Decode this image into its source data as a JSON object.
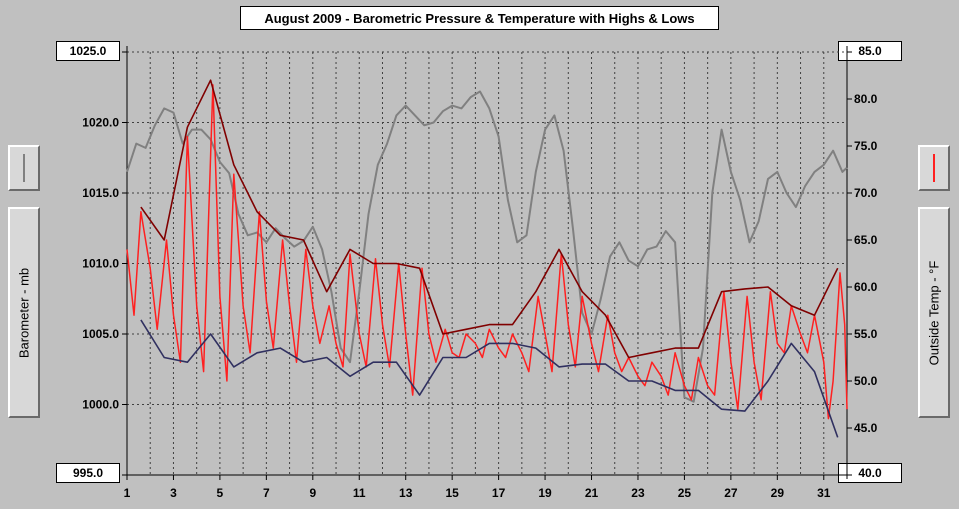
{
  "chart_data": {
    "type": "line",
    "title": "August 2009 - Barometric Pressure & Temperature with Highs & Lows",
    "x": {
      "label": "",
      "range": [
        1,
        32
      ],
      "ticks": [
        "1",
        "3",
        "5",
        "7",
        "9",
        "11",
        "13",
        "15",
        "17",
        "19",
        "21",
        "23",
        "25",
        "27",
        "29",
        "31"
      ]
    },
    "y_left": {
      "label": "Barometer - mb",
      "range": [
        995.0,
        1025.0
      ],
      "ticks": [
        "995.0",
        "1000.0",
        "1005.0",
        "1010.0",
        "1015.0",
        "1020.0",
        "1025.0"
      ]
    },
    "y_right": {
      "label": "Outside Temp - °F",
      "range": [
        40.0,
        85.0
      ],
      "ticks": [
        "40.0",
        "45.0",
        "50.0",
        "55.0",
        "60.0",
        "65.0",
        "70.0",
        "75.0",
        "80.0",
        "85.0"
      ]
    },
    "grid": true,
    "colors": {
      "background": "#c0c0c0",
      "grid": "#404040",
      "barometer": "#808080",
      "temperature": "#ff2020",
      "highs": "#800000",
      "lows": "#303060"
    },
    "series": [
      {
        "key": "barometer",
        "axis": "left",
        "points": [
          [
            1,
            1016.5
          ],
          [
            1.4,
            1018.5
          ],
          [
            1.8,
            1018.2
          ],
          [
            2.2,
            1019.8
          ],
          [
            2.6,
            1021.0
          ],
          [
            3.0,
            1020.7
          ],
          [
            3.4,
            1018.5
          ],
          [
            3.8,
            1019.5
          ],
          [
            4.2,
            1019.5
          ],
          [
            4.6,
            1018.8
          ],
          [
            5.0,
            1017.2
          ],
          [
            5.4,
            1016.4
          ],
          [
            5.8,
            1013.5
          ],
          [
            6.2,
            1012.0
          ],
          [
            6.6,
            1012.2
          ],
          [
            7.0,
            1011.5
          ],
          [
            7.4,
            1012.5
          ],
          [
            7.8,
            1011.8
          ],
          [
            8.2,
            1011.2
          ],
          [
            8.6,
            1011.6
          ],
          [
            9.0,
            1012.6
          ],
          [
            9.4,
            1011.0
          ],
          [
            9.8,
            1008.0
          ],
          [
            10.2,
            1004.0
          ],
          [
            10.6,
            1003.0
          ],
          [
            11.0,
            1008.0
          ],
          [
            11.4,
            1013.5
          ],
          [
            11.8,
            1017.0
          ],
          [
            12.2,
            1018.5
          ],
          [
            12.6,
            1020.5
          ],
          [
            13.0,
            1021.2
          ],
          [
            13.4,
            1020.5
          ],
          [
            13.8,
            1019.8
          ],
          [
            14.2,
            1020.0
          ],
          [
            14.6,
            1020.8
          ],
          [
            15.0,
            1021.2
          ],
          [
            15.4,
            1021.0
          ],
          [
            15.8,
            1021.8
          ],
          [
            16.2,
            1022.2
          ],
          [
            16.6,
            1021.0
          ],
          [
            17.0,
            1019.0
          ],
          [
            17.4,
            1014.5
          ],
          [
            17.8,
            1011.5
          ],
          [
            18.2,
            1012.0
          ],
          [
            18.6,
            1016.5
          ],
          [
            19.0,
            1019.5
          ],
          [
            19.4,
            1020.5
          ],
          [
            19.8,
            1018.0
          ],
          [
            20.2,
            1012.5
          ],
          [
            20.6,
            1006.5
          ],
          [
            21.0,
            1005.0
          ],
          [
            21.4,
            1007.5
          ],
          [
            21.8,
            1010.5
          ],
          [
            22.2,
            1011.5
          ],
          [
            22.6,
            1010.2
          ],
          [
            23.0,
            1009.8
          ],
          [
            23.4,
            1011.0
          ],
          [
            23.8,
            1011.2
          ],
          [
            24.2,
            1012.3
          ],
          [
            24.6,
            1011.5
          ],
          [
            25.0,
            1000.5
          ],
          [
            25.4,
            1000.2
          ],
          [
            25.8,
            1004.0
          ],
          [
            26.2,
            1015.0
          ],
          [
            26.6,
            1019.5
          ],
          [
            27.0,
            1016.5
          ],
          [
            27.4,
            1014.5
          ],
          [
            27.8,
            1011.5
          ],
          [
            28.2,
            1013.0
          ],
          [
            28.6,
            1016.0
          ],
          [
            29.0,
            1016.5
          ],
          [
            29.4,
            1015.0
          ],
          [
            29.8,
            1014.0
          ],
          [
            30.2,
            1015.5
          ],
          [
            30.6,
            1016.5
          ],
          [
            31.0,
            1017.0
          ],
          [
            31.4,
            1018.0
          ],
          [
            31.8,
            1016.5
          ],
          [
            32.0,
            1016.8
          ]
        ]
      },
      {
        "key": "temperature",
        "axis": "right",
        "points": [
          [
            1.0,
            64.0
          ],
          [
            1.3,
            57.0
          ],
          [
            1.6,
            68.0
          ],
          [
            2.0,
            62.0
          ],
          [
            2.3,
            55.5
          ],
          [
            2.7,
            65.0
          ],
          [
            3.0,
            57.0
          ],
          [
            3.3,
            52.0
          ],
          [
            3.6,
            76.0
          ],
          [
            4.0,
            58.0
          ],
          [
            4.3,
            51.0
          ],
          [
            4.7,
            81.5
          ],
          [
            5.0,
            59.0
          ],
          [
            5.3,
            50.0
          ],
          [
            5.6,
            72.0
          ],
          [
            6.0,
            58.0
          ],
          [
            6.3,
            53.0
          ],
          [
            6.7,
            68.0
          ],
          [
            7.0,
            58.5
          ],
          [
            7.3,
            53.5
          ],
          [
            7.7,
            65.0
          ],
          [
            8.0,
            58.0
          ],
          [
            8.3,
            52.0
          ],
          [
            8.7,
            64.0
          ],
          [
            9.0,
            58.0
          ],
          [
            9.3,
            54.0
          ],
          [
            9.7,
            58.0
          ],
          [
            10.0,
            54.0
          ],
          [
            10.3,
            51.5
          ],
          [
            10.6,
            63.5
          ],
          [
            11.0,
            55.0
          ],
          [
            11.3,
            51.5
          ],
          [
            11.7,
            63.0
          ],
          [
            12.0,
            56.0
          ],
          [
            12.3,
            51.5
          ],
          [
            12.7,
            62.5
          ],
          [
            13.0,
            55.0
          ],
          [
            13.3,
            48.5
          ],
          [
            13.7,
            62.0
          ],
          [
            14.0,
            55.0
          ],
          [
            14.3,
            52.0
          ],
          [
            14.7,
            55.5
          ],
          [
            15.0,
            53.0
          ],
          [
            15.3,
            52.5
          ],
          [
            15.6,
            55.0
          ],
          [
            16.0,
            54.0
          ],
          [
            16.3,
            52.5
          ],
          [
            16.6,
            55.5
          ],
          [
            17.0,
            53.5
          ],
          [
            17.3,
            52.5
          ],
          [
            17.6,
            55.0
          ],
          [
            18.0,
            53.0
          ],
          [
            18.3,
            51.0
          ],
          [
            18.7,
            59.0
          ],
          [
            19.0,
            55.0
          ],
          [
            19.3,
            51.0
          ],
          [
            19.7,
            63.5
          ],
          [
            20.0,
            56.0
          ],
          [
            20.3,
            51.5
          ],
          [
            20.6,
            59.0
          ],
          [
            21.0,
            54.0
          ],
          [
            21.3,
            51.0
          ],
          [
            21.7,
            57.0
          ],
          [
            22.0,
            53.0
          ],
          [
            22.3,
            51.0
          ],
          [
            22.6,
            52.5
          ],
          [
            23.0,
            50.5
          ],
          [
            23.3,
            49.5
          ],
          [
            23.6,
            52.0
          ],
          [
            24.0,
            50.5
          ],
          [
            24.3,
            48.5
          ],
          [
            24.6,
            53.0
          ],
          [
            25.0,
            49.5
          ],
          [
            25.3,
            48.0
          ],
          [
            25.6,
            52.5
          ],
          [
            26.0,
            49.5
          ],
          [
            26.3,
            48.5
          ],
          [
            26.7,
            59.5
          ],
          [
            27.0,
            52.0
          ],
          [
            27.3,
            47.0
          ],
          [
            27.7,
            59.0
          ],
          [
            28.0,
            52.0
          ],
          [
            28.3,
            48.0
          ],
          [
            28.7,
            59.5
          ],
          [
            29.0,
            54.0
          ],
          [
            29.3,
            53.0
          ],
          [
            29.6,
            58.0
          ],
          [
            30.0,
            55.0
          ],
          [
            30.3,
            53.0
          ],
          [
            30.6,
            57.0
          ],
          [
            31.0,
            52.0
          ],
          [
            31.2,
            46.0
          ],
          [
            31.4,
            50.0
          ],
          [
            31.7,
            61.5
          ],
          [
            31.9,
            56.0
          ],
          [
            32.0,
            47.0
          ]
        ]
      },
      {
        "key": "highs",
        "axis": "right",
        "points": [
          [
            1.6,
            68.5
          ],
          [
            2.6,
            65.0
          ],
          [
            3.6,
            77.0
          ],
          [
            4.6,
            82.0
          ],
          [
            5.6,
            73.0
          ],
          [
            6.6,
            68.0
          ],
          [
            7.6,
            65.5
          ],
          [
            8.6,
            65.0
          ],
          [
            9.6,
            59.5
          ],
          [
            10.6,
            64.0
          ],
          [
            11.6,
            62.5
          ],
          [
            12.6,
            62.5
          ],
          [
            13.6,
            62.0
          ],
          [
            14.6,
            55.0
          ],
          [
            15.6,
            55.5
          ],
          [
            16.6,
            56.0
          ],
          [
            17.6,
            56.0
          ],
          [
            18.6,
            59.5
          ],
          [
            19.6,
            64.0
          ],
          [
            20.6,
            59.5
          ],
          [
            21.6,
            57.0
          ],
          [
            22.6,
            52.5
          ],
          [
            23.6,
            53.0
          ],
          [
            24.6,
            53.5
          ],
          [
            25.6,
            53.5
          ],
          [
            26.6,
            59.5
          ],
          [
            27.6,
            59.8
          ],
          [
            28.6,
            60.0
          ],
          [
            29.6,
            58.0
          ],
          [
            30.6,
            57.0
          ],
          [
            31.6,
            62.0
          ]
        ]
      },
      {
        "key": "lows",
        "axis": "right",
        "points": [
          [
            1.6,
            56.5
          ],
          [
            2.6,
            52.5
          ],
          [
            3.6,
            52.0
          ],
          [
            4.6,
            55.0
          ],
          [
            5.6,
            51.5
          ],
          [
            6.6,
            53.0
          ],
          [
            7.6,
            53.5
          ],
          [
            8.6,
            52.0
          ],
          [
            9.6,
            52.5
          ],
          [
            10.6,
            50.5
          ],
          [
            11.6,
            52.0
          ],
          [
            12.6,
            52.0
          ],
          [
            13.6,
            48.5
          ],
          [
            14.6,
            52.5
          ],
          [
            15.6,
            52.5
          ],
          [
            16.6,
            54.0
          ],
          [
            17.6,
            54.0
          ],
          [
            18.6,
            53.5
          ],
          [
            19.6,
            51.5
          ],
          [
            20.6,
            51.8
          ],
          [
            21.6,
            51.8
          ],
          [
            22.6,
            50.0
          ],
          [
            23.6,
            50.0
          ],
          [
            24.6,
            49.0
          ],
          [
            25.6,
            49.0
          ],
          [
            26.6,
            47.0
          ],
          [
            27.6,
            46.8
          ],
          [
            28.6,
            50.0
          ],
          [
            29.6,
            54.0
          ],
          [
            30.6,
            51.0
          ],
          [
            31.6,
            44.0
          ]
        ]
      }
    ]
  }
}
